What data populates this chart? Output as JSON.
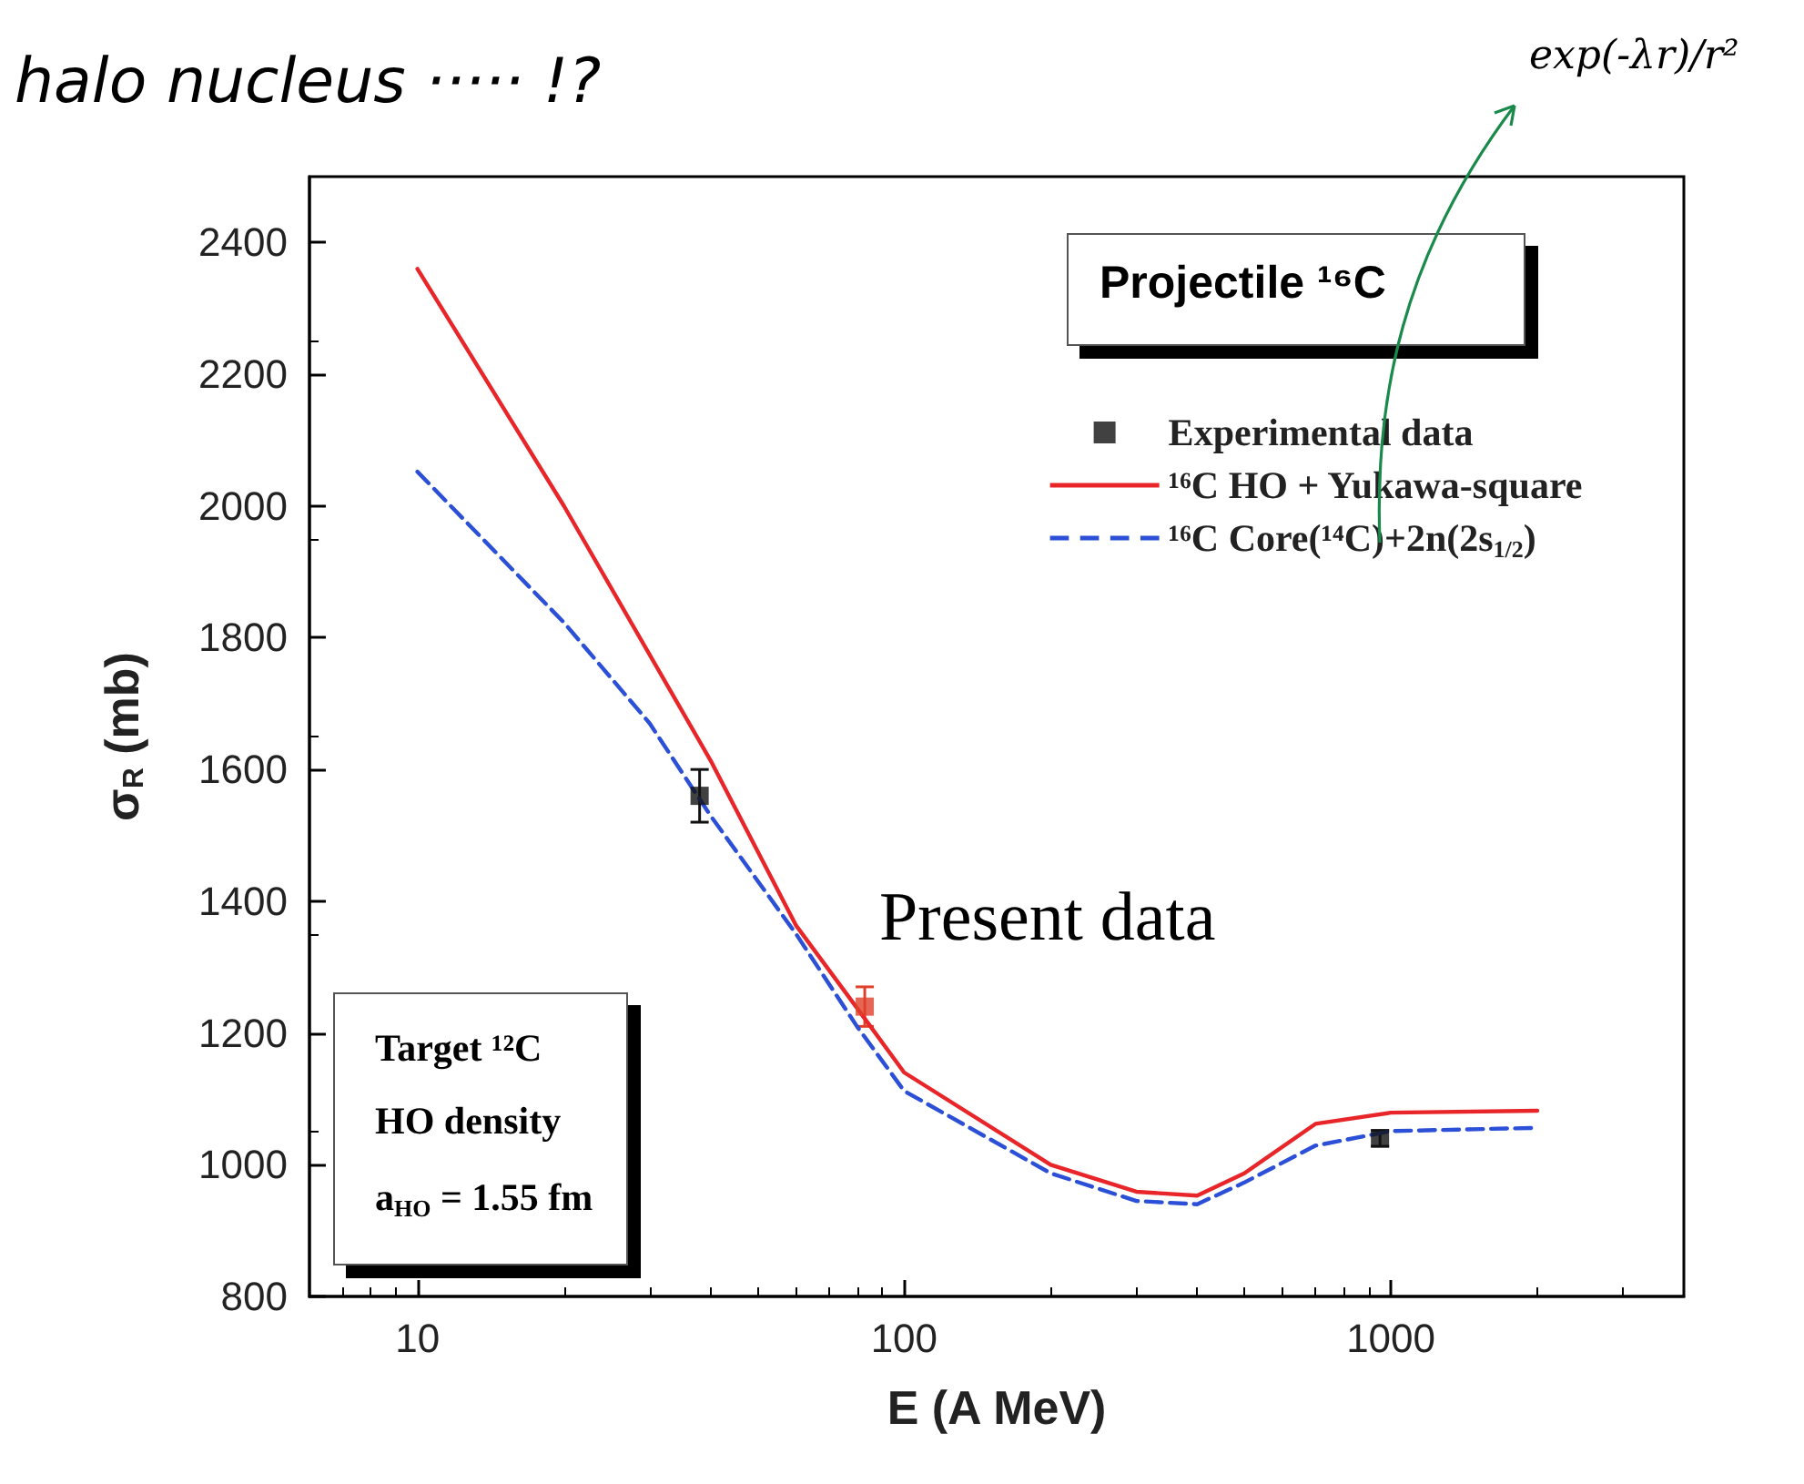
{
  "chart_data": {
    "type": "line",
    "xlabel": "E (A MeV)",
    "ylabel": "σ$_{R}$ (mb)",
    "log": "x",
    "xlim": [
      6,
      4000
    ],
    "xticks": [
      10,
      100,
      1000
    ],
    "ylim": [
      800,
      2500
    ],
    "yticks": [
      800,
      1000,
      1200,
      1400,
      1600,
      1800,
      2000,
      2200,
      2400
    ],
    "grid": false,
    "legend": "top right",
    "series": [
      {
        "name": "Experimental data",
        "type": "scatter",
        "marker": "square",
        "color": "#111111",
        "x": [
          38,
          950
        ],
        "values": [
          1560,
          1040
        ],
        "errors": [
          40,
          12
        ]
      },
      {
        "type": "scatter",
        "marker": "square",
        "color": "#e0402a",
        "x": [
          83
        ],
        "values": [
          1240
        ],
        "errors": [
          30
        ]
      },
      {
        "name": "¹⁶C HO + Yukawa-square",
        "marker": "none",
        "line_style": "solid",
        "color": "#e8262a",
        "x": [
          10,
          20,
          40,
          60,
          80,
          100,
          200,
          300,
          400,
          500,
          700,
          1000,
          2000
        ],
        "values": [
          2360,
          2000,
          1614,
          1363,
          1238,
          1140,
          1000,
          959,
          953,
          987,
          1062,
          1079,
          1082
        ]
      },
      {
        "name": "¹⁶C Core(¹⁴C)+2n(2s$_{1/2}$)",
        "marker": "none",
        "line_style": "dashed",
        "color": "#2b4fd6",
        "x": [
          10,
          20,
          30,
          40,
          60,
          80,
          100,
          200,
          300,
          400,
          500,
          700,
          1000,
          2000
        ],
        "values": [
          2052,
          1823,
          1670,
          1530,
          1350,
          1210,
          1112,
          987,
          945,
          940,
          973,
          1029,
          1051,
          1056
        ]
      }
    ],
    "annotations": [
      "halo nucleus ····· !?",
      "exp(-λr)/r²",
      "Projectile ¹⁶C",
      "Target ¹²C",
      "HO density",
      "a$_{HO}$ = 1.55 fm",
      {
        "text": "Present data",
        "x": 83,
        "y": 1240
      }
    ]
  }
}
